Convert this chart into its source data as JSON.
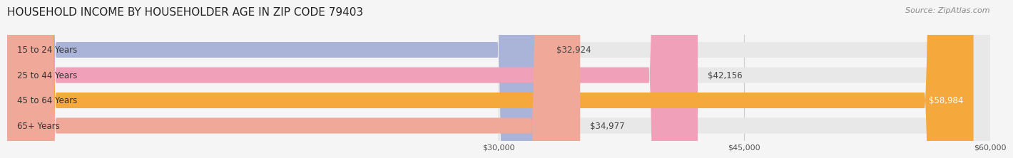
{
  "title": "HOUSEHOLD INCOME BY HOUSEHOLDER AGE IN ZIP CODE 79403",
  "source": "Source: ZipAtlas.com",
  "categories": [
    "15 to 24 Years",
    "25 to 44 Years",
    "45 to 64 Years",
    "65+ Years"
  ],
  "values": [
    32924,
    42156,
    58984,
    34977
  ],
  "bar_colors": [
    "#aab4d8",
    "#f0a0b8",
    "#f5a83c",
    "#f0a898"
  ],
  "bar_bg_color": "#e8e8e8",
  "value_labels": [
    "$32,924",
    "$42,156",
    "$58,984",
    "$34,977"
  ],
  "xmin": 0,
  "xmax": 60000,
  "xticks": [
    30000,
    45000,
    60000
  ],
  "xtick_labels": [
    "$30,000",
    "$45,000",
    "$60,000"
  ],
  "title_fontsize": 11,
  "source_fontsize": 8,
  "label_fontsize": 8.5,
  "value_fontsize": 8.5,
  "background_color": "#f5f5f5"
}
